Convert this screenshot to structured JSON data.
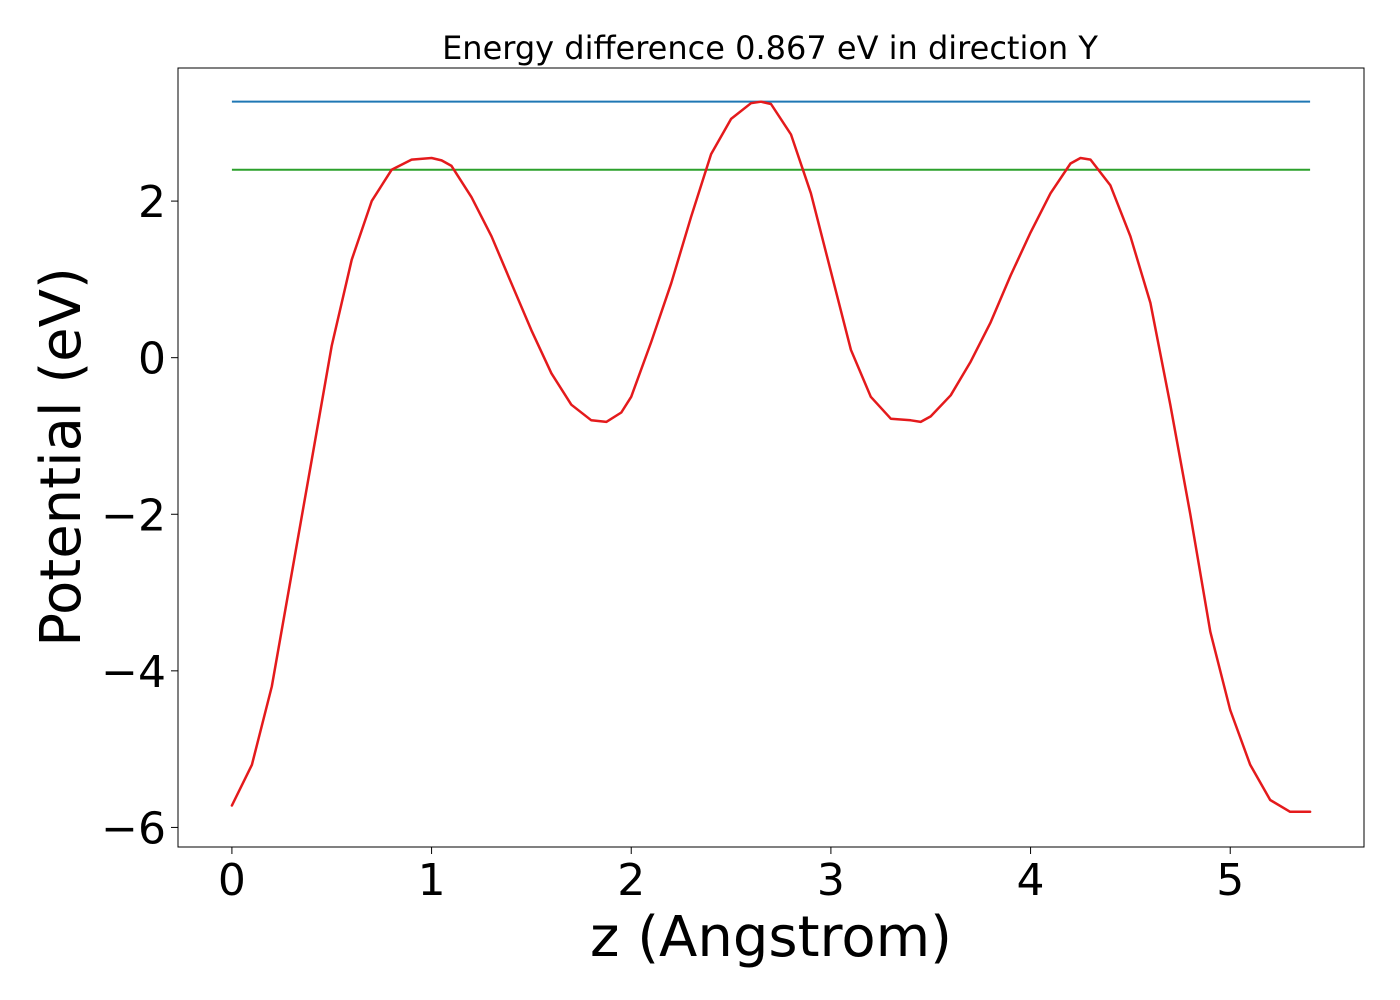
{
  "chart_data": {
    "type": "line",
    "title": "Energy difference 0.867 eV in direction Y",
    "xlabel": "z (Angstrom)",
    "ylabel": "Potential (eV)",
    "xlim": [
      -0.27,
      5.67
    ],
    "ylim": [
      -6.25,
      3.7
    ],
    "xticks": [
      0,
      1,
      2,
      3,
      4,
      5
    ],
    "yticks": [
      -6,
      -4,
      -2,
      0,
      2
    ],
    "grid": false,
    "hlines": [
      {
        "y": 3.27,
        "x_range": [
          0,
          5.4
        ],
        "color": "#1f77b4"
      },
      {
        "y": 2.4,
        "x_range": [
          0,
          5.4
        ],
        "color": "#2ca02c"
      }
    ],
    "series": [
      {
        "color": "#e41a1c",
        "x": [
          0,
          0.1,
          0.2,
          0.3,
          0.4,
          0.5,
          0.6,
          0.7,
          0.8,
          0.9,
          1.0,
          1.05,
          1.1,
          1.2,
          1.3,
          1.4,
          1.5,
          1.6,
          1.7,
          1.8,
          1.875,
          1.95,
          2.0,
          2.1,
          2.2,
          2.3,
          2.4,
          2.5,
          2.6,
          2.65,
          2.7,
          2.8,
          2.9,
          3.0,
          3.1,
          3.2,
          3.3,
          3.4,
          3.45,
          3.5,
          3.6,
          3.7,
          3.8,
          3.9,
          4.0,
          4.1,
          4.2,
          4.25,
          4.3,
          4.4,
          4.5,
          4.6,
          4.7,
          4.8,
          4.9,
          5.0,
          5.1,
          5.2,
          5.3,
          5.35,
          5.4
        ],
        "y": [
          -5.72,
          -5.2,
          -4.2,
          -2.75,
          -1.3,
          0.15,
          1.25,
          2.0,
          2.4,
          2.53,
          2.55,
          2.52,
          2.45,
          2.05,
          1.55,
          0.95,
          0.35,
          -0.2,
          -0.6,
          -0.8,
          -0.82,
          -0.7,
          -0.5,
          0.2,
          0.95,
          1.8,
          2.6,
          3.05,
          3.25,
          3.27,
          3.24,
          2.85,
          2.1,
          1.1,
          0.1,
          -0.5,
          -0.78,
          -0.8,
          -0.82,
          -0.75,
          -0.48,
          -0.05,
          0.45,
          1.05,
          1.6,
          2.1,
          2.48,
          2.55,
          2.53,
          2.2,
          1.55,
          0.7,
          -0.6,
          -2.0,
          -3.5,
          -4.5,
          -5.2,
          -5.65,
          -5.8,
          -5.8,
          -5.8
        ]
      }
    ]
  }
}
